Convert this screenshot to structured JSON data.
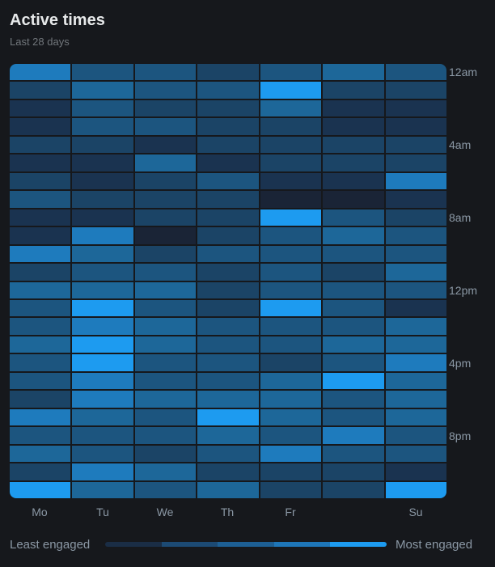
{
  "header": {
    "title": "Active times",
    "subtitle": "Last 28 days"
  },
  "y_axis_labels": [
    "12am",
    "4am",
    "8am",
    "12pm",
    "4pm",
    "8pm"
  ],
  "x_axis_labels": [
    "Mo",
    "Tu",
    "We",
    "Th",
    "Fr",
    "",
    "Su"
  ],
  "legend": {
    "least_label": "Least engaged",
    "most_label": "Most engaged",
    "colors": [
      "#1a2d45",
      "#1c4a74",
      "#1d5f94",
      "#1e76b8",
      "#1d9bf0"
    ]
  },
  "colors": {
    "background": "#16181c",
    "scale": [
      "#1a2436",
      "#1a3350",
      "#1b4466",
      "#1c557f",
      "#1d6799",
      "#1e7bbd",
      "#1d9bf0"
    ]
  },
  "chart_data": {
    "type": "heatmap",
    "days": [
      "Mo",
      "Tu",
      "We",
      "Th",
      "Fr",
      "",
      "Su"
    ],
    "hours": [
      "12am",
      "1am",
      "2am",
      "3am",
      "4am",
      "5am",
      "6am",
      "7am",
      "8am",
      "9am",
      "10am",
      "11am",
      "12pm",
      "1pm",
      "2pm",
      "3pm",
      "4pm",
      "5pm",
      "6pm",
      "7pm",
      "8pm",
      "9pm",
      "10pm",
      "11pm"
    ],
    "engagement_level_scale": [
      0,
      6
    ],
    "values": [
      [
        5,
        3,
        3,
        2,
        3,
        4,
        3
      ],
      [
        2,
        4,
        3,
        3,
        6,
        2,
        2
      ],
      [
        1,
        3,
        2,
        2,
        4,
        1,
        1
      ],
      [
        1,
        3,
        3,
        2,
        2,
        1,
        1
      ],
      [
        2,
        2,
        1,
        2,
        2,
        2,
        2
      ],
      [
        1,
        1,
        4,
        1,
        2,
        2,
        2
      ],
      [
        2,
        1,
        2,
        3,
        1,
        1,
        5
      ],
      [
        3,
        2,
        2,
        2,
        0,
        0,
        1
      ],
      [
        1,
        1,
        2,
        2,
        6,
        3,
        2
      ],
      [
        1,
        5,
        0,
        2,
        3,
        4,
        3
      ],
      [
        5,
        4,
        2,
        3,
        3,
        3,
        3
      ],
      [
        2,
        3,
        3,
        2,
        3,
        2,
        4
      ],
      [
        4,
        4,
        4,
        2,
        3,
        3,
        3
      ],
      [
        3,
        6,
        3,
        2,
        6,
        3,
        1
      ],
      [
        3,
        5,
        4,
        3,
        3,
        3,
        4
      ],
      [
        4,
        6,
        4,
        3,
        3,
        4,
        4
      ],
      [
        3,
        6,
        3,
        3,
        2,
        3,
        5
      ],
      [
        3,
        5,
        3,
        3,
        4,
        6,
        4
      ],
      [
        2,
        5,
        4,
        4,
        4,
        3,
        4
      ],
      [
        5,
        4,
        3,
        6,
        4,
        3,
        4
      ],
      [
        3,
        3,
        3,
        4,
        3,
        5,
        3
      ],
      [
        4,
        3,
        2,
        3,
        5,
        3,
        3
      ],
      [
        2,
        5,
        4,
        2,
        2,
        2,
        1
      ],
      [
        6,
        4,
        3,
        4,
        2,
        2,
        6
      ]
    ]
  }
}
